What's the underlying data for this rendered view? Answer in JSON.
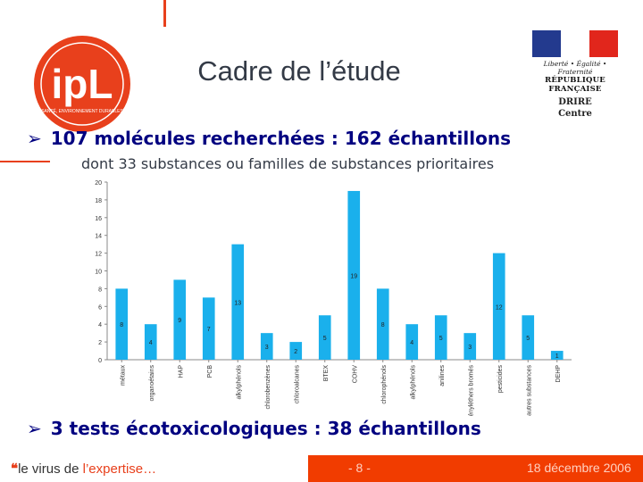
{
  "header": {
    "title": "Cadre de l’étude",
    "logo_text": "ipL",
    "logo_tagline": "SANTÉ, ENVIRONNEMENT DURABLES",
    "gov_motto": "Liberté • Égalité • Fraternité",
    "gov_name": "RÉPUBLIQUE FRANÇAISE",
    "gov_org_line1": "DRIRE",
    "gov_org_line2": "Centre",
    "flag_colors": [
      "#233a8e",
      "#ffffff",
      "#e1261c"
    ]
  },
  "content": {
    "bullet1": "107 molécules recherchées : 162 échantillons",
    "bullet1_sub": "dont 33 substances ou familles de substances prioritaires",
    "bullet2": "3 tests écotoxicologiques : 38 échantillons",
    "bullet_icon": "arrow-bullet-icon"
  },
  "footer": {
    "tagline_prefix": "le virus de ",
    "tagline_emph": "l’expertise…",
    "page": "- 8 -",
    "date": "18 décembre 2006"
  },
  "colors": {
    "accent": "#e8401c",
    "bar": "#1ab0ec",
    "footer_bar": "#f13c00",
    "title": "#333a46",
    "bullet": "#000080"
  },
  "chart_data": {
    "type": "bar",
    "categories": [
      "métaux",
      "organoétains",
      "HAP",
      "PCB",
      "alkylphénols",
      "chlorobenzènes",
      "chloroalcanes",
      "BTEX",
      "COHV",
      "chlorophénols",
      "alkylphénols",
      "anilines",
      "diphényléthers bromés",
      "pesticides",
      "autres substances",
      "DEHP"
    ],
    "values": [
      8,
      4,
      9,
      7,
      13,
      3,
      2,
      5,
      19,
      8,
      4,
      5,
      3,
      12,
      5,
      1
    ],
    "data_labels": [
      "8",
      "4",
      "9",
      "7",
      "13",
      "3",
      "2",
      "5",
      "19",
      "8",
      "4",
      "5",
      "3",
      "12",
      "5",
      "1"
    ],
    "ylim": [
      0,
      20
    ],
    "yticks": [
      "0",
      "2",
      "4",
      "6",
      "8",
      "10",
      "12",
      "14",
      "16",
      "18",
      "20"
    ],
    "grid": false,
    "xlabel": "",
    "ylabel": ""
  }
}
